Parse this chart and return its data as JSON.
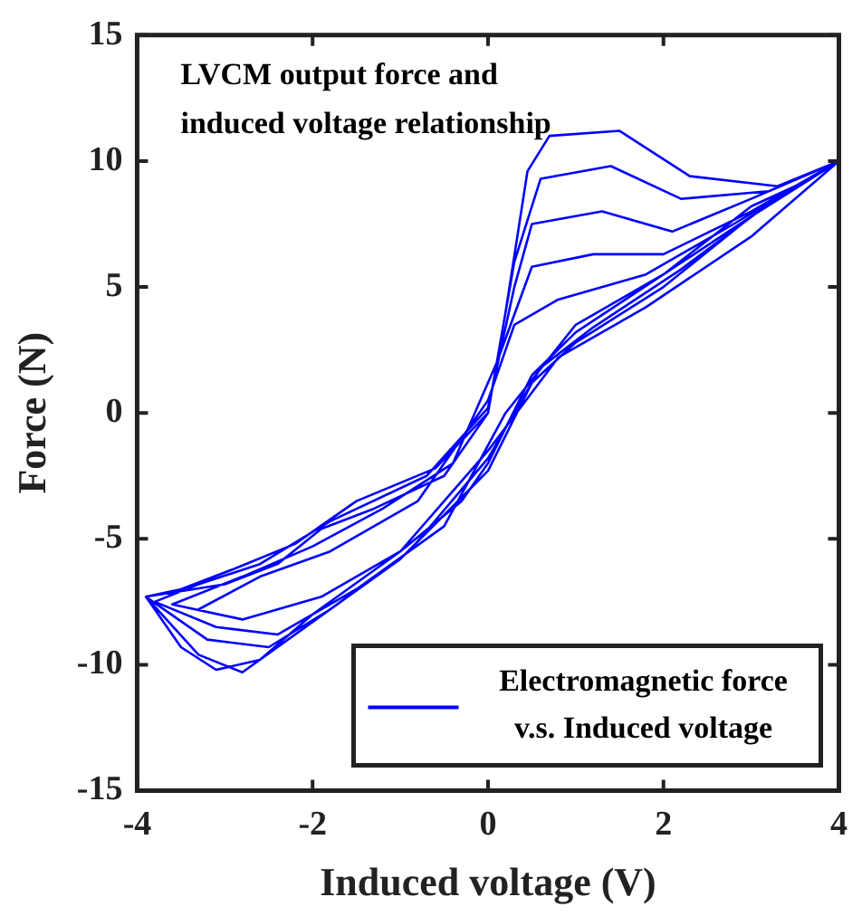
{
  "chart_data": {
    "type": "line",
    "xlabel": "Induced voltage (V)",
    "ylabel": "Force (N)",
    "annotations": [
      "LVCM output force and induced voltage relationship"
    ],
    "xlim": [
      -4,
      4
    ],
    "xticks": [
      -4,
      -2,
      0,
      2,
      4
    ],
    "ylim": [
      -15,
      15
    ],
    "yticks": [
      -15,
      -10,
      -5,
      0,
      5,
      10,
      15
    ],
    "grid": false,
    "legend": "bottom right",
    "marker": "none",
    "line_style": "solid",
    "series": [
      {
        "name": "Electromagnetic force v.s. Induced voltage",
        "color": "#0000ff",
        "x": [
          -3.9,
          -3.5,
          -3.1,
          -2.6,
          -2,
          -1,
          -0.3,
          0,
          0.5,
          1,
          2,
          3,
          3.5,
          4,
          3.3,
          2.3,
          1.5,
          0.7,
          0.45,
          0.2,
          0,
          -0.5,
          -1.3,
          -1.9,
          -2.4,
          -3,
          -3.9,
          -3.3,
          -2.8,
          -2,
          -1,
          0,
          0.5,
          1,
          2,
          3,
          4,
          3.2,
          2.2,
          1.4,
          0.6,
          0.3,
          0,
          -0.6,
          -1.5,
          -2.2,
          -2.9,
          -3.5,
          -3.9,
          -3.2,
          -2.5,
          -1.8,
          -0.9,
          0,
          0.6,
          1.2,
          2.2,
          3.2,
          4,
          3,
          2.1,
          1.3,
          0.5,
          0.3,
          0,
          -0.7,
          -1.8,
          -2.6,
          -3.3,
          -3.8,
          -3.1,
          -2.4,
          -1.5,
          -0.5,
          0.2,
          1,
          2,
          3,
          4,
          3,
          2,
          1.2,
          0.5,
          0.1,
          -0.4,
          -1.2,
          -2,
          -2.8,
          -3.6,
          -2.8,
          -1.9,
          -1,
          0,
          0.8,
          1.8,
          3,
          4,
          2.8,
          1.8,
          0.8,
          0.3,
          0,
          -0.8,
          -1.8,
          -2.6,
          -3.3
        ],
        "values": [
          -7.3,
          -9.3,
          -10.2,
          -9.8,
          -8,
          -5.5,
          -3.5,
          -2,
          1.5,
          3.2,
          5.5,
          8.2,
          9,
          10,
          9,
          9.4,
          11.2,
          11,
          9.6,
          4,
          0,
          -2.5,
          -3.8,
          -4.6,
          -6,
          -6.8,
          -7.3,
          -9.6,
          -10.3,
          -8.3,
          -5.8,
          -2.3,
          1.2,
          2.8,
          5,
          7.8,
          10,
          8.8,
          8.5,
          9.8,
          9.3,
          6,
          0,
          -2.2,
          -3.5,
          -5.2,
          -6.2,
          -7,
          -7.3,
          -9,
          -9.3,
          -7.8,
          -5.5,
          -1.8,
          1.8,
          3.4,
          5.7,
          8.3,
          10,
          8.5,
          7.2,
          8,
          7.5,
          5,
          0.2,
          -2.5,
          -4.3,
          -6,
          -6.8,
          -7.5,
          -8.5,
          -8.8,
          -7,
          -4.5,
          0,
          3.5,
          5.5,
          7.8,
          10,
          8,
          6.3,
          6.3,
          5.8,
          2,
          -2,
          -3.8,
          -5.3,
          -6.5,
          -7.6,
          -8.2,
          -7.3,
          -5.5,
          -1.5,
          2.2,
          4.2,
          7,
          10,
          7.5,
          5.5,
          4.5,
          3.5,
          0.5,
          -3.5,
          -5.5,
          -6.5,
          -7.8
        ]
      }
    ]
  }
}
